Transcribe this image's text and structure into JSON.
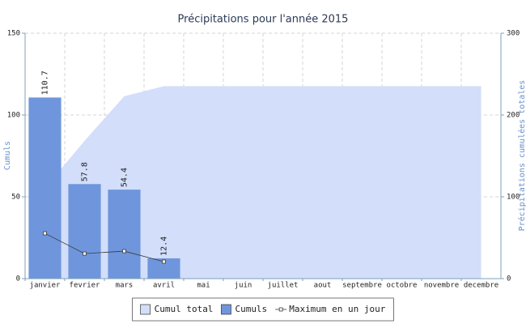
{
  "chart_data": {
    "type": "bar",
    "title": "Précipitations pour l'année 2015",
    "ylabel": "Cumuls",
    "y2label": "Précipitations cumulées totales",
    "categories": [
      "janvier",
      "fevrier",
      "mars",
      "avril",
      "mai",
      "juin",
      "juillet",
      "aout",
      "septembre",
      "octobre",
      "novembre",
      "decembre"
    ],
    "series": [
      {
        "name": "Cumul total",
        "type": "area",
        "axis": "y2",
        "color": "#d2defa",
        "values": [
          110.7,
          168.5,
          222.9,
          235.3,
          235.3,
          235.3,
          235.3,
          235.3,
          235.3,
          235.3,
          235.3,
          235.3
        ]
      },
      {
        "name": "Cumuls",
        "type": "bar",
        "color": "#6f96dc",
        "values": [
          110.7,
          57.8,
          54.4,
          12.4,
          null,
          null,
          null,
          null,
          null,
          null,
          null,
          null
        ]
      },
      {
        "name": "Maximum en un jour",
        "type": "line",
        "color": "#3a3a3a",
        "values": [
          27.7,
          15.3,
          16.8,
          10.4,
          null,
          null,
          null,
          null,
          null,
          null,
          null,
          null
        ]
      }
    ],
    "ylim": [
      0,
      150
    ],
    "yticks": [
      0,
      50,
      100,
      150
    ],
    "y2lim": [
      0,
      300
    ],
    "y2ticks": [
      0,
      100,
      200,
      300
    ],
    "grid": true,
    "legend": "bottom"
  }
}
